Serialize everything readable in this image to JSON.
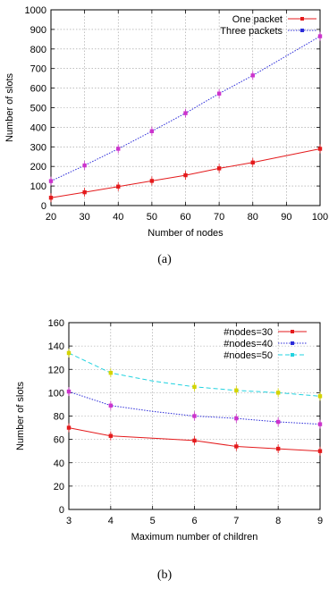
{
  "chart_data": [
    {
      "type": "line",
      "caption": "(a)",
      "xlabel": "Number of nodes",
      "ylabel": "Number of slots",
      "x": [
        20,
        30,
        40,
        50,
        60,
        70,
        80,
        90,
        100
      ],
      "xlim": [
        20,
        100
      ],
      "ylim": [
        0,
        1000
      ],
      "xticks": [
        "20",
        "30",
        "40",
        "50",
        "60",
        "70",
        "80",
        "90",
        "100"
      ],
      "yticks": [
        "0",
        "100",
        "200",
        "300",
        "400",
        "500",
        "600",
        "700",
        "800",
        "900",
        "1000"
      ],
      "grid": true,
      "legend_position": "top-right",
      "series": [
        {
          "name": "One packet",
          "color": "#e41a1c",
          "marker_color": "#e41a1c",
          "dash": "solid",
          "points": [
            [
              20,
              40
            ],
            [
              30,
              68
            ],
            [
              40,
              97
            ],
            [
              50,
              126
            ],
            [
              60,
              155
            ],
            [
              70,
              190
            ],
            [
              80,
              220
            ],
            [
              100,
              290
            ]
          ],
          "markers": [
            [
              20,
              40
            ],
            [
              30,
              68
            ],
            [
              40,
              97
            ],
            [
              50,
              126
            ],
            [
              60,
              155
            ],
            [
              70,
              190
            ],
            [
              80,
              220
            ],
            [
              100,
              290
            ]
          ]
        },
        {
          "name": "Three packets",
          "color": "#2b2bd9",
          "marker_color": "#cc33cc",
          "dash": "dotted",
          "points": [
            [
              20,
              125
            ],
            [
              30,
              205
            ],
            [
              40,
              290
            ],
            [
              50,
              380
            ],
            [
              60,
              472
            ],
            [
              70,
              572
            ],
            [
              80,
              665
            ],
            [
              100,
              865
            ]
          ],
          "markers": [
            [
              20,
              125
            ],
            [
              30,
              205
            ],
            [
              40,
              290
            ],
            [
              50,
              380
            ],
            [
              60,
              472
            ],
            [
              70,
              572
            ],
            [
              80,
              665
            ],
            [
              100,
              865
            ]
          ]
        }
      ]
    },
    {
      "type": "line",
      "caption": "(b)",
      "xlabel": "Maximum number of children",
      "ylabel": "Number of slots",
      "x": [
        3,
        4,
        5,
        6,
        7,
        8,
        9
      ],
      "xlim": [
        3,
        9
      ],
      "ylim": [
        0,
        160
      ],
      "xticks": [
        "3",
        "4",
        "5",
        "6",
        "7",
        "8",
        "9"
      ],
      "yticks": [
        "0",
        "20",
        "40",
        "60",
        "80",
        "100",
        "120",
        "140",
        "160"
      ],
      "grid": true,
      "legend_position": "top-right",
      "series": [
        {
          "name": "#nodes=30",
          "color": "#e41a1c",
          "marker_color": "#e41a1c",
          "dash": "solid",
          "points": [
            [
              3,
              70
            ],
            [
              4,
              63
            ],
            [
              5,
              61
            ],
            [
              6,
              59
            ],
            [
              7,
              54
            ],
            [
              8,
              52
            ],
            [
              9,
              50
            ]
          ],
          "markers": [
            [
              3,
              70
            ],
            [
              4,
              63
            ],
            [
              6,
              59
            ],
            [
              7,
              54
            ],
            [
              8,
              52
            ],
            [
              9,
              50
            ]
          ]
        },
        {
          "name": "#nodes=40",
          "color": "#2b2bd9",
          "marker_color": "#cc33cc",
          "dash": "dotted",
          "points": [
            [
              3,
              101
            ],
            [
              4,
              89
            ],
            [
              5,
              84
            ],
            [
              6,
              80
            ],
            [
              7,
              78
            ],
            [
              8,
              75
            ],
            [
              9,
              73
            ]
          ],
          "markers": [
            [
              3,
              101
            ],
            [
              4,
              89
            ],
            [
              6,
              80
            ],
            [
              7,
              78
            ],
            [
              8,
              75
            ],
            [
              9,
              73
            ]
          ]
        },
        {
          "name": "#nodes=50",
          "color": "#22d3e0",
          "marker_color": "#d4d400",
          "dash": "dashed",
          "points": [
            [
              3,
              134
            ],
            [
              4,
              117
            ],
            [
              5,
              110
            ],
            [
              6,
              105
            ],
            [
              7,
              102
            ],
            [
              8,
              100
            ],
            [
              9,
              97
            ]
          ],
          "markers": [
            [
              3,
              134
            ],
            [
              4,
              117
            ],
            [
              6,
              105
            ],
            [
              7,
              102
            ],
            [
              8,
              100
            ],
            [
              9,
              97
            ]
          ]
        }
      ]
    }
  ]
}
